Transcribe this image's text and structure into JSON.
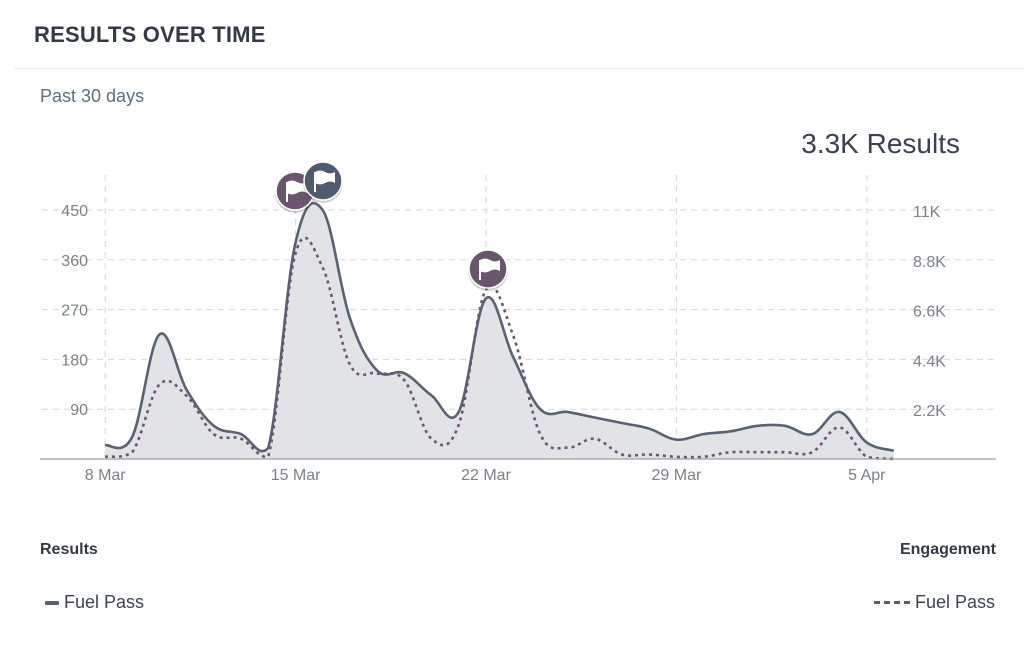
{
  "header": {
    "title": "RESULTS OVER TIME"
  },
  "range": {
    "label": "Past 30 days"
  },
  "summary": {
    "total": "3.3K Results"
  },
  "legend": {
    "left_heading": "Results",
    "right_heading": "Engagement",
    "left_item": "Fuel Pass",
    "right_item": "Fuel Pass"
  },
  "colors": {
    "results_line": "#586273",
    "engagement_line": "#6b556e",
    "area_fill": "#e2e3e6",
    "grid": "#d4d6da",
    "flag_purple": "#6b556e",
    "flag_slate": "#4f5b6e"
  },
  "chart_data": {
    "type": "line",
    "x_tick_labels": [
      "8 Mar",
      "15 Mar",
      "22 Mar",
      "29 Mar",
      "5 Apr"
    ],
    "y_left": {
      "ticks": [
        90,
        180,
        270,
        360,
        450
      ],
      "range": [
        0,
        450
      ]
    },
    "y_right": {
      "ticks": [
        "2.2K",
        "4.4K",
        "6.6K",
        "8.8K",
        "11K"
      ],
      "range": [
        0,
        11000
      ]
    },
    "series": [
      {
        "name": "Fuel Pass",
        "axis": "left",
        "style": "solid-area",
        "x": [
          "7 Mar",
          "8 Mar",
          "9 Mar",
          "10 Mar",
          "11 Mar",
          "12 Mar",
          "13 Mar",
          "14 Mar",
          "15 Mar",
          "16 Mar",
          "17 Mar",
          "18 Mar",
          "19 Mar",
          "20 Mar",
          "21 Mar",
          "22 Mar",
          "23 Mar",
          "24 Mar",
          "25 Mar",
          "26 Mar",
          "27 Mar",
          "28 Mar",
          "29 Mar",
          "30 Mar",
          "31 Mar",
          "1 Apr",
          "2 Apr",
          "3 Apr",
          "4 Apr",
          "5 Apr",
          "6 Apr"
        ],
        "values": [
          25,
          40,
          225,
          125,
          60,
          45,
          20,
          390,
          450,
          255,
          160,
          155,
          115,
          85,
          290,
          185,
          90,
          85,
          75,
          65,
          55,
          35,
          45,
          50,
          60,
          60,
          45,
          85,
          30,
          15,
          0
        ]
      },
      {
        "name": "Fuel Pass",
        "axis": "right",
        "style": "dashed",
        "x": [
          "7 Mar",
          "8 Mar",
          "9 Mar",
          "10 Mar",
          "11 Mar",
          "12 Mar",
          "13 Mar",
          "14 Mar",
          "15 Mar",
          "16 Mar",
          "17 Mar",
          "18 Mar",
          "19 Mar",
          "20 Mar",
          "21 Mar",
          "22 Mar",
          "23 Mar",
          "24 Mar",
          "25 Mar",
          "26 Mar",
          "27 Mar",
          "28 Mar",
          "29 Mar",
          "30 Mar",
          "31 Mar",
          "1 Apr",
          "2 Apr",
          "3 Apr",
          "4 Apr",
          "5 Apr",
          "6 Apr"
        ],
        "values": [
          100,
          300,
          3300,
          2800,
          1100,
          900,
          100,
          9100,
          8500,
          4200,
          3800,
          3500,
          900,
          1500,
          7500,
          5500,
          1100,
          500,
          900,
          200,
          200,
          100,
          100,
          300,
          300,
          300,
          300,
          1400,
          100,
          0,
          0
        ]
      }
    ],
    "annotations": [
      {
        "x": "15 Mar",
        "type": "flag",
        "color": "purple"
      },
      {
        "x": "16 Mar",
        "type": "flag",
        "color": "slate"
      },
      {
        "x": "22 Mar",
        "type": "flag",
        "color": "purple"
      }
    ],
    "grid": true
  }
}
